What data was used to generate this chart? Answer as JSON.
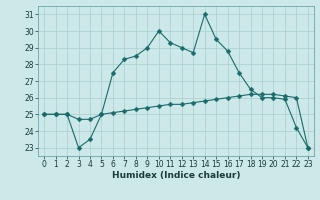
{
  "xlabel": "Humidex (Indice chaleur)",
  "background_color": "#cce8e8",
  "line_color": "#1a6b6b",
  "x_values": [
    0,
    1,
    2,
    3,
    4,
    5,
    6,
    7,
    8,
    9,
    10,
    11,
    12,
    13,
    14,
    15,
    16,
    17,
    18,
    19,
    20,
    21,
    22,
    23
  ],
  "y_curve1": [
    25.0,
    25.0,
    25.0,
    23.0,
    23.5,
    25.0,
    27.5,
    28.3,
    28.5,
    29.0,
    30.0,
    29.3,
    29.0,
    28.7,
    31.0,
    29.5,
    28.8,
    27.5,
    26.5,
    26.0,
    26.0,
    25.9,
    24.2,
    23.0
  ],
  "y_curve2": [
    25.0,
    25.0,
    25.0,
    24.7,
    24.7,
    25.0,
    25.1,
    25.2,
    25.3,
    25.4,
    25.5,
    25.6,
    25.6,
    25.7,
    25.8,
    25.9,
    26.0,
    26.1,
    26.2,
    26.2,
    26.2,
    26.1,
    26.0,
    23.0
  ],
  "xlim": [
    -0.5,
    23.5
  ],
  "ylim": [
    22.5,
    31.5
  ],
  "yticks": [
    23,
    24,
    25,
    26,
    27,
    28,
    29,
    30,
    31
  ],
  "xticks": [
    0,
    1,
    2,
    3,
    4,
    5,
    6,
    7,
    8,
    9,
    10,
    11,
    12,
    13,
    14,
    15,
    16,
    17,
    18,
    19,
    20,
    21,
    22,
    23
  ],
  "grid_color": "#aacece",
  "line_color2": "#1a6b6b",
  "markersize": 2.5,
  "lw": 0.8,
  "tick_fontsize": 5.5,
  "xlabel_fontsize": 6.5
}
